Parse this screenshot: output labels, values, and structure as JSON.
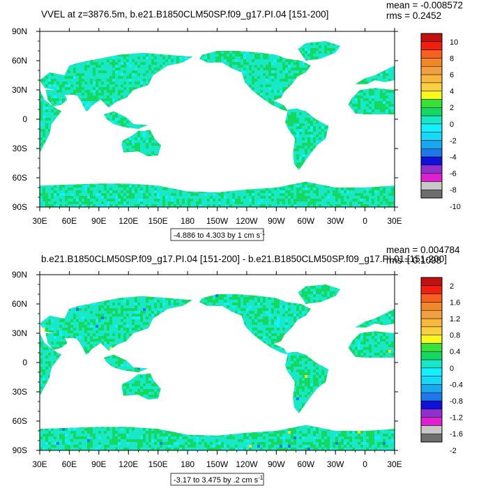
{
  "chart_data": [
    {
      "type": "heatmap",
      "title": "VVEL at z=3876.5m, b.e21.B1850CLM50SP.f09_g17.PI.04 [151-200]",
      "stats": {
        "mean": "mean = -0.008572",
        "rms": "rms = 0.2452"
      },
      "range_label": "-4.886 to 4.303 by 1 cm s",
      "range_superscript": "-1",
      "x_ticks": [
        "30E",
        "60E",
        "90E",
        "120E",
        "150E",
        "180",
        "150W",
        "120W",
        "90W",
        "60W",
        "30W",
        "0",
        "30E"
      ],
      "y_ticks": [
        "90N",
        "60N",
        "30N",
        "0",
        "30S",
        "60S",
        "90S"
      ],
      "xlim": [
        30,
        390
      ],
      "ylim": [
        -90,
        90
      ],
      "colorbar_labels": [
        "10",
        "8",
        "6",
        "4",
        "2",
        "0",
        "-2",
        "-4",
        "-6",
        "-8",
        "-10"
      ],
      "colorbar_range": [
        -10,
        10
      ]
    },
    {
      "type": "heatmap",
      "title": "b.e21.B1850CLM50SP.f09_g17.PI.04 [151-200] - b.e21.B1850CLM50SP.f09_g17.PI.01 [151-200]",
      "stats": {
        "mean": "mean = 0.004784",
        "rms": "rms = 0.1098"
      },
      "range_label": "-3.17 to 3.475 by .2 cm s",
      "range_superscript": "-1",
      "x_ticks": [
        "30E",
        "60E",
        "90E",
        "120E",
        "150E",
        "180",
        "150W",
        "120W",
        "90W",
        "60W",
        "30W",
        "0",
        "30E"
      ],
      "y_ticks": [
        "90N",
        "60N",
        "30N",
        "0",
        "30S",
        "60S",
        "90S"
      ],
      "xlim": [
        30,
        390
      ],
      "ylim": [
        -90,
        90
      ],
      "colorbar_labels": [
        "2",
        "1.6",
        "1.2",
        "0.8",
        "0.4",
        "0",
        "-0.4",
        "-0.8",
        "-1.2",
        "-1.6",
        "-2"
      ],
      "colorbar_range": [
        -2,
        2
      ]
    }
  ],
  "colormap": [
    "#6e6e6e",
    "#c8c8c8",
    "#e020d0",
    "#9030d0",
    "#1010d8",
    "#1e78e8",
    "#18a8f0",
    "#18d8f8",
    "#14f0ff",
    "#18e8c8",
    "#14d860",
    "#38e038",
    "#f8f81c",
    "#f8d040",
    "#f8b840",
    "#f0a040",
    "#f08828",
    "#f86020",
    "#f02010",
    "#c01010"
  ]
}
